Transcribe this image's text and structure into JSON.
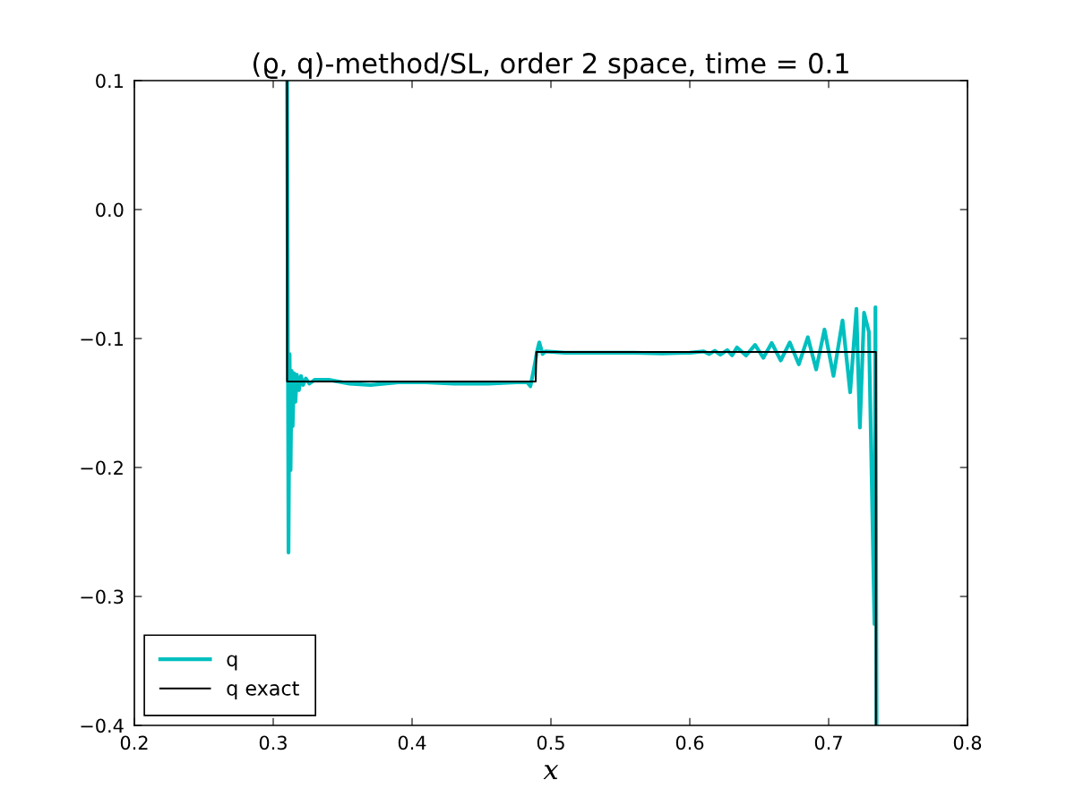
{
  "chart_data": {
    "type": "line",
    "title": "(ϱ, q)-method/SL, order 2 space, time = 0.1",
    "xlabel": "x",
    "series": [
      {
        "name": "q",
        "color": "#00bfbf",
        "x": [
          0.31,
          0.311,
          0.3118,
          0.3125,
          0.3133,
          0.314,
          0.315,
          0.316,
          0.317,
          0.3185,
          0.32,
          0.3215,
          0.3235,
          0.326,
          0.33,
          0.34,
          0.355,
          0.37,
          0.39,
          0.41,
          0.43,
          0.455,
          0.475,
          0.483,
          0.4852,
          0.4875,
          0.49,
          0.4916,
          0.494,
          0.496,
          0.51,
          0.54,
          0.56,
          0.58,
          0.6,
          0.61,
          0.614,
          0.618,
          0.622,
          0.627,
          0.6305,
          0.634,
          0.6405,
          0.647,
          0.653,
          0.659,
          0.6655,
          0.672,
          0.6785,
          0.685,
          0.691,
          0.697,
          0.7035,
          0.71,
          0.7155,
          0.72,
          0.7225,
          0.7255,
          0.729,
          0.733,
          0.7337,
          0.7345
        ],
        "values": [
          0.1,
          -0.266,
          -0.112,
          -0.202,
          -0.125,
          -0.168,
          -0.127,
          -0.149,
          -0.128,
          -0.14,
          -0.129,
          -0.136,
          -0.131,
          -0.135,
          -0.132,
          -0.132,
          -0.135,
          -0.136,
          -0.134,
          -0.134,
          -0.135,
          -0.135,
          -0.134,
          -0.134,
          -0.137,
          -0.125,
          -0.11,
          -0.103,
          -0.112,
          -0.11,
          -0.111,
          -0.111,
          -0.111,
          -0.1115,
          -0.111,
          -0.11,
          -0.112,
          -0.1095,
          -0.1125,
          -0.109,
          -0.113,
          -0.1069,
          -0.1132,
          -0.105,
          -0.115,
          -0.1035,
          -0.117,
          -0.103,
          -0.12,
          -0.099,
          -0.124,
          -0.093,
          -0.129,
          -0.086,
          -0.1417,
          -0.077,
          -0.169,
          -0.08,
          -0.095,
          -0.3215,
          -0.0757,
          -0.4
        ]
      },
      {
        "name": "q exact",
        "color": "#000000",
        "x": [
          0.31,
          0.31,
          0.489,
          0.4895,
          0.734,
          0.734
        ],
        "values": [
          0.1,
          -0.1333,
          -0.1333,
          -0.1104,
          -0.1104,
          -0.4
        ]
      }
    ],
    "xlim": [
      0.2,
      0.8
    ],
    "ylim": [
      -0.4,
      0.1
    ],
    "xticks": [
      0.2,
      0.3,
      0.4,
      0.5,
      0.6,
      0.7,
      0.8
    ],
    "yticks": [
      {
        "value": -0.4,
        "label": "−0.4"
      },
      {
        "value": -0.3,
        "label": "−0.3"
      },
      {
        "value": -0.2,
        "label": "−0.2"
      },
      {
        "value": -0.1,
        "label": "−0.1"
      },
      {
        "value": 0.0,
        "label": "0.0"
      },
      0.1
    ],
    "legend": "lower left",
    "grid": false,
    "marker": "none",
    "line_style": "solid"
  }
}
